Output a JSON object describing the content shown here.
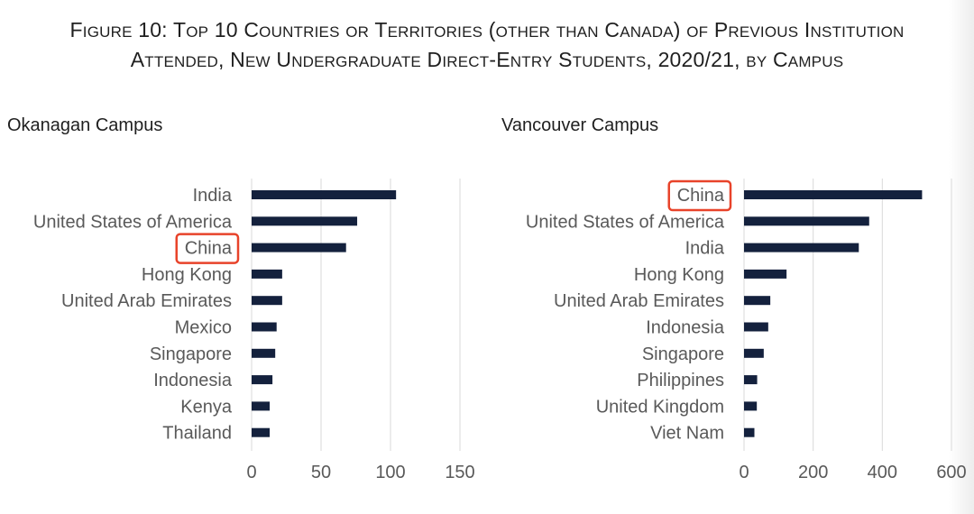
{
  "figure": {
    "title_line1": "Figure 10: Top 10 Countries or Territories (other than Canada) of Previous Institution",
    "title_line2": "Attended, New Undergraduate Direct-Entry Students, 2020/21, by Campus"
  },
  "colors": {
    "bar": "#14213d",
    "grid": "#d9d9d9",
    "highlight": "#e8432a"
  },
  "chart_data": [
    {
      "type": "bar",
      "orientation": "horizontal",
      "title": "Okanagan Campus",
      "categories": [
        "India",
        "United States of America",
        "China",
        "Hong Kong",
        "United Arab Emirates",
        "Mexico",
        "Singapore",
        "Indonesia",
        "Kenya",
        "Thailand"
      ],
      "values": [
        104,
        76,
        68,
        22,
        22,
        18,
        17,
        15,
        13,
        13
      ],
      "xlim": [
        0,
        150
      ],
      "xticks": [
        "0",
        "50",
        "100",
        "150"
      ],
      "grid": true,
      "highlighted_category": "China"
    },
    {
      "type": "bar",
      "orientation": "horizontal",
      "title": "Vancouver Campus",
      "categories": [
        "China",
        "United States of America",
        "India",
        "Hong Kong",
        "United Arab Emirates",
        "Indonesia",
        "Singapore",
        "Philippines",
        "United Kingdom",
        "Viet Nam"
      ],
      "values": [
        515,
        362,
        332,
        123,
        76,
        70,
        57,
        38,
        37,
        30
      ],
      "xlim": [
        0,
        600
      ],
      "xticks": [
        "0",
        "200",
        "400",
        "600"
      ],
      "grid": true,
      "highlighted_category": "China"
    }
  ]
}
